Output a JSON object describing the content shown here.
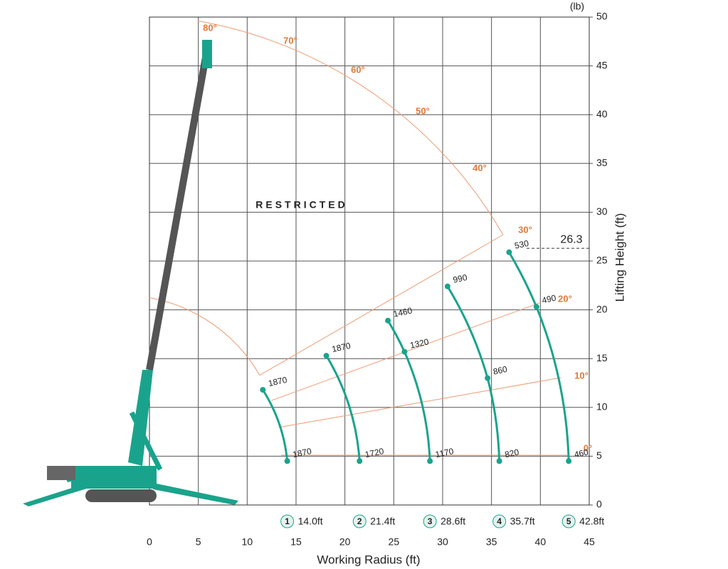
{
  "chart_data": {
    "type": "loadchart",
    "unit": "(lb)",
    "x_label": "Working Radius (ft)",
    "y_label": "Lifting Height (ft)",
    "restricted": "RESTRICTED",
    "xlim": [
      0,
      45
    ],
    "ylim": [
      0,
      50
    ],
    "xticks": [
      0,
      5,
      10,
      15,
      20,
      25,
      30,
      35,
      40,
      45
    ],
    "yticks": [
      0,
      5,
      10,
      15,
      20,
      25,
      30,
      35,
      40,
      45,
      50
    ],
    "grid": true,
    "angles": [
      {
        "value": 80,
        "label": "80°"
      },
      {
        "value": 70,
        "label": "70°"
      },
      {
        "value": 60,
        "label": "60°"
      },
      {
        "value": 50,
        "label": "50°"
      },
      {
        "value": 40,
        "label": "40°"
      },
      {
        "value": 30,
        "label": "30°"
      },
      {
        "value": 20,
        "label": "20°"
      },
      {
        "value": 10,
        "label": "10°"
      },
      {
        "value": 0,
        "label": "0°"
      }
    ],
    "reference_height": 26.3,
    "booms": [
      {
        "number": "1",
        "length": "14.0ft",
        "color": "#1aa38c",
        "x": [
          11.6,
          14.1
        ],
        "heights": [
          11.8,
          4.5
        ],
        "loads": [
          1870,
          1870
        ]
      },
      {
        "number": "2",
        "length": "21.4ft",
        "color": "#1aa38c",
        "x": [
          18.1,
          21.5
        ],
        "heights": [
          15.3,
          4.5
        ],
        "loads": [
          1870,
          1720
        ]
      },
      {
        "number": "3",
        "length": "28.6ft",
        "color": "#1aa38c",
        "x": [
          24.4,
          26.1,
          28.7
        ],
        "heights": [
          18.9,
          15.7,
          4.5
        ],
        "loads": [
          1460,
          1320,
          1170
        ]
      },
      {
        "number": "4",
        "length": "35.7ft",
        "color": "#1aa38c",
        "x": [
          30.5,
          34.6,
          35.8
        ],
        "heights": [
          22.4,
          13.0,
          4.5
        ],
        "loads": [
          990,
          860,
          820
        ]
      },
      {
        "number": "5",
        "length": "42.8ft",
        "color": "#1aa38c",
        "x": [
          36.8,
          39.6,
          42.9
        ],
        "heights": [
          25.9,
          20.3,
          4.5
        ],
        "loads": [
          530,
          490,
          460
        ]
      }
    ]
  }
}
